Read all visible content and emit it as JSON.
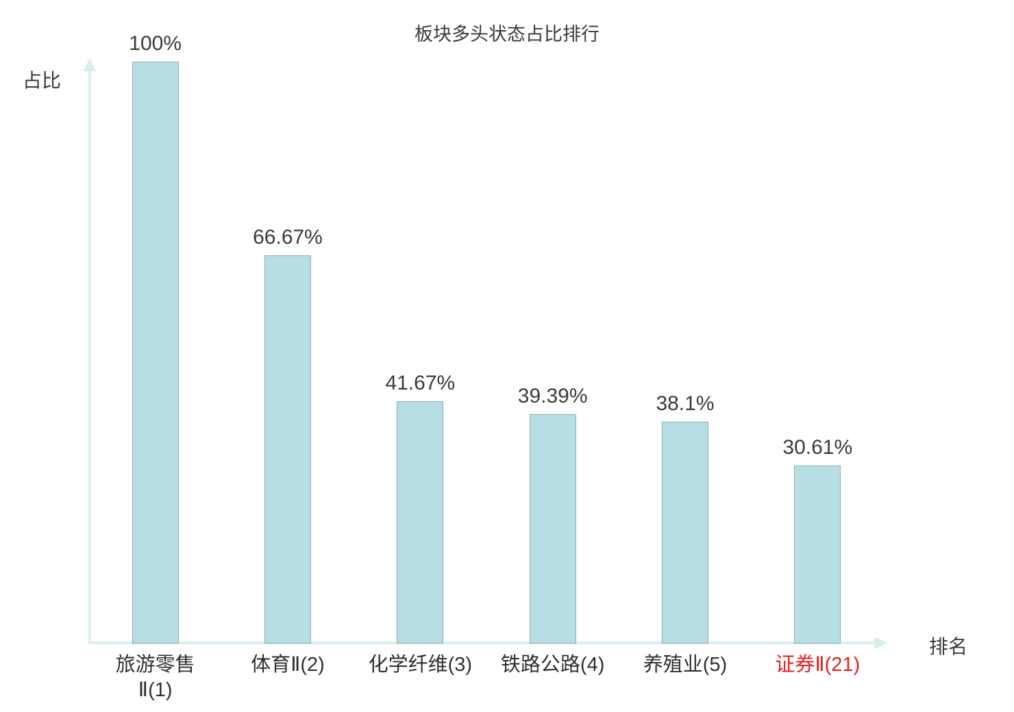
{
  "chart_data": {
    "type": "bar",
    "title": "板块多头状态占比排行",
    "xlabel": "排名",
    "ylabel": "占比",
    "categories": [
      "旅游零售\nⅡ(1)",
      "体育Ⅱ(2)",
      "化学纤维(3)",
      "铁路公路(4)",
      "养殖业(5)",
      "证券Ⅱ(21)"
    ],
    "values": [
      100,
      66.67,
      41.67,
      39.39,
      38.1,
      30.61
    ],
    "value_labels": [
      "100%",
      "66.67%",
      "41.67%",
      "39.39%",
      "38.1%",
      "30.61%"
    ],
    "highlight_index": 5,
    "ylim": [
      0,
      100
    ],
    "grid": false,
    "legend": "none",
    "bar_color": "#b7dee3",
    "bar_border_color": "#8fabb0",
    "highlight_color": "#e02020",
    "axis_color": "#d8efee",
    "text_color": "#3a3a3a"
  }
}
